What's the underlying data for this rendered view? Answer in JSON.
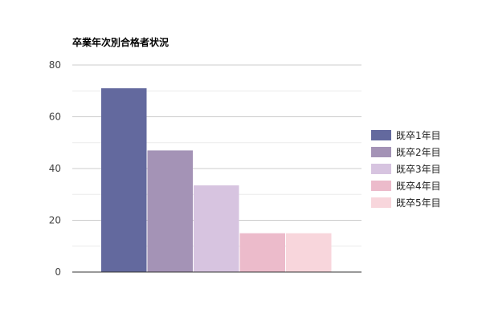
{
  "chart_data": {
    "type": "bar",
    "title": "卒業年次別合格者状況",
    "xlabel": "",
    "ylabel": "",
    "ylim": [
      0,
      80
    ],
    "yticks": [
      0,
      20,
      40,
      60,
      80
    ],
    "grid": true,
    "legend_position": "right",
    "series": [
      {
        "name": "既卒1年目",
        "value": 71,
        "color": "#63699e"
      },
      {
        "name": "既卒2年目",
        "value": 47,
        "color": "#a493b6"
      },
      {
        "name": "既卒3年目",
        "value": 33.5,
        "color": "#d7c4e0"
      },
      {
        "name": "既卒4年目",
        "value": 15,
        "color": "#ecbbcb"
      },
      {
        "name": "既卒5年目",
        "value": 15,
        "color": "#f8d6dc"
      }
    ]
  }
}
